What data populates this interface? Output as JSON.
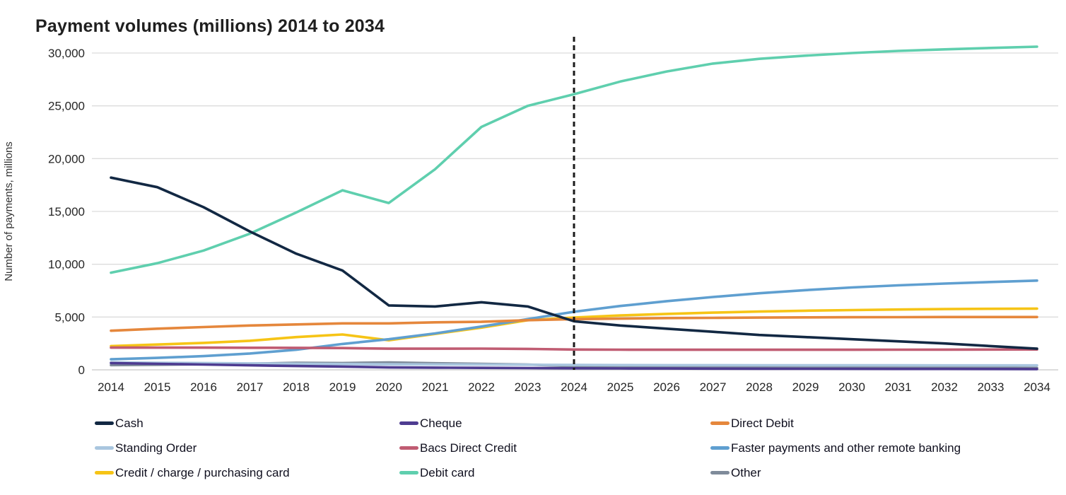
{
  "title": "Payment volumes (millions) 2014 to 2034",
  "chart_data": {
    "type": "line",
    "title": "Payment volumes (millions) 2014 to 2034",
    "xlabel": "",
    "ylabel": "Number of payments, millions",
    "ylim": [
      0,
      30000
    ],
    "grid": "horizontal",
    "grid_color": "#dcdcdc",
    "axis_line_color": "#c6c6c6",
    "forecast_divider": {
      "x": 2024,
      "color": "#1a1a1a",
      "style": "dashed"
    },
    "legend_position": "bottom",
    "y_tick_values": [
      0,
      5000,
      10000,
      15000,
      20000,
      25000,
      30000
    ],
    "y_tick_labels": [
      "0",
      "5,000",
      "10,000",
      "15,000",
      "20,000",
      "25,000",
      "30,000"
    ],
    "x": [
      2014,
      2015,
      2016,
      2017,
      2018,
      2019,
      2020,
      2021,
      2022,
      2023,
      2024,
      2025,
      2026,
      2027,
      2028,
      2029,
      2030,
      2031,
      2032,
      2033,
      2034
    ],
    "series": [
      {
        "name": "Cash",
        "color": "#122843",
        "values": [
          18200,
          17300,
          15400,
          13100,
          11000,
          9400,
          6100,
          6000,
          6400,
          6000,
          4600,
          4200,
          3900,
          3600,
          3300,
          3100,
          2900,
          2700,
          2500,
          2250,
          2000
        ]
      },
      {
        "name": "Cheque",
        "color": "#4e3c91",
        "values": [
          640,
          570,
          500,
          430,
          360,
          310,
          230,
          210,
          190,
          170,
          150,
          135,
          125,
          115,
          105,
          100,
          95,
          90,
          85,
          80,
          75
        ]
      },
      {
        "name": "Direct Debit",
        "color": "#e5873c",
        "values": [
          3700,
          3900,
          4050,
          4200,
          4300,
          4400,
          4400,
          4500,
          4550,
          4700,
          4800,
          4850,
          4900,
          4920,
          4950,
          4970,
          4980,
          4990,
          5000,
          5000,
          5000
        ]
      },
      {
        "name": "Standing Order",
        "color": "#a9c6df",
        "values": [
          700,
          670,
          640,
          610,
          580,
          550,
          520,
          510,
          500,
          480,
          460,
          450,
          445,
          440,
          435,
          430,
          428,
          426,
          424,
          422,
          420
        ]
      },
      {
        "name": "Bacs Direct Credit",
        "color": "#c05c72",
        "values": [
          2100,
          2100,
          2100,
          2090,
          2080,
          2060,
          2000,
          2000,
          2010,
          1980,
          1920,
          1910,
          1900,
          1900,
          1900,
          1900,
          1905,
          1910,
          1915,
          1920,
          1930
        ]
      },
      {
        "name": "Faster payments and other remote banking",
        "color": "#5f9fd0",
        "values": [
          1000,
          1130,
          1300,
          1550,
          1900,
          2450,
          2900,
          3450,
          4100,
          4800,
          5500,
          6050,
          6500,
          6900,
          7250,
          7550,
          7800,
          8000,
          8170,
          8320,
          8450
        ]
      },
      {
        "name": "Credit / charge / purchasing card",
        "color": "#f6c416",
        "values": [
          2250,
          2400,
          2550,
          2750,
          3100,
          3350,
          2800,
          3400,
          4000,
          4700,
          4950,
          5150,
          5300,
          5420,
          5520,
          5600,
          5660,
          5710,
          5750,
          5780,
          5800
        ]
      },
      {
        "name": "Debit card",
        "color": "#5fcfae",
        "values": [
          9200,
          10100,
          11300,
          12900,
          14900,
          17000,
          15800,
          19000,
          23000,
          25000,
          26100,
          27300,
          28250,
          29000,
          29450,
          29750,
          30000,
          30200,
          30350,
          30480,
          30600
        ]
      },
      {
        "name": "Other",
        "color": "#7f8b9a",
        "values": [
          450,
          480,
          520,
          580,
          660,
          640,
          700,
          620,
          560,
          500,
          350,
          310,
          280,
          260,
          240,
          225,
          215,
          205,
          195,
          185,
          175
        ]
      }
    ]
  }
}
